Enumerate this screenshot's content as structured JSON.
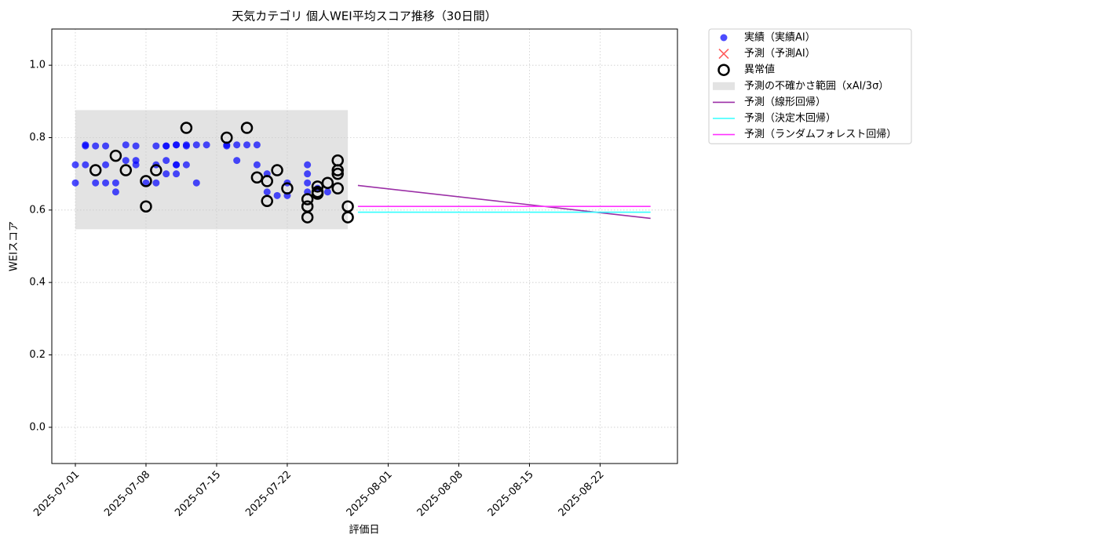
{
  "chart_data": {
    "type": "scatter",
    "title": "天気カテゴリ 個人WEI平均スコア推移（30日間）",
    "x_label": "評価日",
    "y_label": "WEIスコア",
    "xlim": [
      "2025-06-28T16:00",
      "2025-08-29T16:00"
    ],
    "xticks": [
      "2025-07-01",
      "2025-07-08",
      "2025-07-15",
      "2025-07-22",
      "2025-08-01",
      "2025-08-08",
      "2025-08-15",
      "2025-08-22"
    ],
    "ylim": [
      -0.1,
      1.1
    ],
    "yticks": [
      {
        "value": 0,
        "label": "0.0"
      },
      0.2,
      0.4,
      0.6,
      0.8,
      {
        "value": 1,
        "label": "1.0"
      }
    ],
    "grid": true,
    "legend": "outside-upper-right",
    "band": {
      "name": "予測の不確かさ範囲（xAI/3σ）",
      "color": "#c8c8c8",
      "x": [
        "2025-07-01",
        "2025-07-28"
      ],
      "y": [
        0.547,
        0.876
      ]
    },
    "series": [
      {
        "name": "実績（実績AI）",
        "style": "points",
        "marker": "circle",
        "color": "#0000ff",
        "x": [
          "2025-07-01",
          "2025-07-01",
          "2025-07-02",
          "2025-07-02",
          "2025-07-02",
          "2025-07-03",
          "2025-07-03",
          "2025-07-04",
          "2025-07-04",
          "2025-07-04",
          "2025-07-05",
          "2025-07-05",
          "2025-07-06",
          "2025-07-06",
          "2025-07-07",
          "2025-07-07",
          "2025-07-07",
          "2025-07-08",
          "2025-07-09",
          "2025-07-09",
          "2025-07-09",
          "2025-07-10",
          "2025-07-10",
          "2025-07-10",
          "2025-07-10",
          "2025-07-11",
          "2025-07-11",
          "2025-07-11",
          "2025-07-11",
          "2025-07-11",
          "2025-07-12",
          "2025-07-12",
          "2025-07-12",
          "2025-07-13",
          "2025-07-13",
          "2025-07-14",
          "2025-07-16",
          "2025-07-16",
          "2025-07-17",
          "2025-07-17",
          "2025-07-18",
          "2025-07-19",
          "2025-07-19",
          "2025-07-20",
          "2025-07-20",
          "2025-07-21",
          "2025-07-22",
          "2025-07-22",
          "2025-07-24",
          "2025-07-24",
          "2025-07-24",
          "2025-07-24",
          "2025-07-25",
          "2025-07-26"
        ],
        "values": [
          0.725,
          0.675,
          0.777,
          0.78,
          0.725,
          0.777,
          0.675,
          0.725,
          0.777,
          0.675,
          0.675,
          0.65,
          0.737,
          0.78,
          0.737,
          0.777,
          0.725,
          0.675,
          0.777,
          0.725,
          0.675,
          0.777,
          0.737,
          0.7,
          0.777,
          0.78,
          0.725,
          0.7,
          0.78,
          0.725,
          0.78,
          0.725,
          0.777,
          0.675,
          0.78,
          0.78,
          0.777,
          0.78,
          0.737,
          0.78,
          0.78,
          0.78,
          0.725,
          0.65,
          0.7,
          0.64,
          0.675,
          0.64,
          0.725,
          0.7,
          0.675,
          0.65,
          0.66,
          0.65
        ]
      },
      {
        "name": "予測（予測AI）",
        "style": "points",
        "marker": "cross",
        "color": "#ff3333",
        "x": [],
        "values": []
      },
      {
        "name": "異常値",
        "style": "points",
        "marker": "ring",
        "color": "#000000",
        "x": [
          "2025-07-03",
          "2025-07-05",
          "2025-07-06",
          "2025-07-08",
          "2025-07-08",
          "2025-07-09",
          "2025-07-12",
          "2025-07-16",
          "2025-07-18",
          "2025-07-19",
          "2025-07-20",
          "2025-07-20",
          "2025-07-21",
          "2025-07-22",
          "2025-07-24",
          "2025-07-24",
          "2025-07-24",
          "2025-07-25",
          "2025-07-25",
          "2025-07-25",
          "2025-07-26",
          "2025-07-27",
          "2025-07-27",
          "2025-07-27",
          "2025-07-27",
          "2025-07-28",
          "2025-07-28"
        ],
        "values": [
          0.71,
          0.75,
          0.71,
          0.61,
          0.68,
          0.71,
          0.827,
          0.8,
          0.827,
          0.69,
          0.625,
          0.68,
          0.71,
          0.66,
          0.63,
          0.58,
          0.61,
          0.645,
          0.65,
          0.665,
          0.675,
          0.66,
          0.737,
          0.71,
          0.7,
          0.61,
          0.58
        ]
      },
      {
        "name": "予測（線形回帰）",
        "style": "line",
        "color": "#9b2fa6",
        "x": [
          "2025-07-29",
          "2025-08-27"
        ],
        "values": [
          0.668,
          0.577
        ]
      },
      {
        "name": "予測（決定木回帰）",
        "style": "line",
        "color": "#33ffff",
        "x": [
          "2025-07-29",
          "2025-08-27"
        ],
        "values": [
          0.594,
          0.594
        ]
      },
      {
        "name": "予測（ランダムフォレスト回帰）",
        "style": "line",
        "color": "#ff33ff",
        "x": [
          "2025-07-29",
          "2025-08-27"
        ],
        "values": [
          0.61,
          0.61
        ]
      }
    ]
  }
}
